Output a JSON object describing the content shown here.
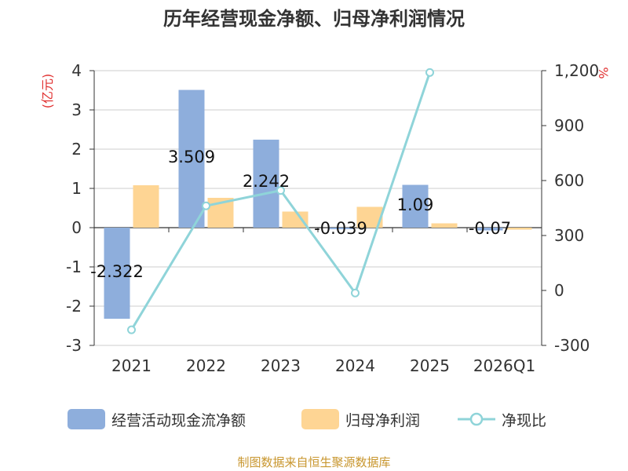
{
  "title": "历年经营现金净额、归母净利润情况",
  "left_unit": "(亿元)",
  "right_unit": "%",
  "source": "制图数据来自恒生聚源数据库",
  "colors": {
    "ocf": "#8eaedc",
    "profit": "#fed594",
    "ratio": "#8fd4d9",
    "unit": "#e03030",
    "source": "#c8962e"
  },
  "legend": [
    {
      "label": "经营活动现金流净额",
      "color": "#8eaedc",
      "kind": "bar"
    },
    {
      "label": "归母净利润",
      "color": "#fed594",
      "kind": "bar"
    },
    {
      "label": "净现比",
      "color": "#8fd4d9",
      "kind": "line"
    }
  ],
  "chart_data": {
    "type": "bar+line",
    "title": "历年经营现金净额、归母净利润情况",
    "categories": [
      "2021",
      "2022",
      "2023",
      "2024",
      "2025",
      "2026Q1"
    ],
    "series": [
      {
        "name": "经营活动现金流净额",
        "axis": "left",
        "type": "bar",
        "values": [
          -2.322,
          3.509,
          2.242,
          -0.039,
          1.09,
          -0.07
        ],
        "labels": [
          "-2.322",
          "3.509",
          "2.242",
          "-0.039",
          "1.09",
          "-0.07"
        ]
      },
      {
        "name": "归母净利润",
        "axis": "left",
        "type": "bar",
        "values": [
          1.08,
          0.76,
          0.41,
          0.53,
          0.11,
          -0.05
        ]
      },
      {
        "name": "净现比",
        "axis": "right",
        "type": "line",
        "values": [
          -215,
          462,
          546,
          -14,
          1190,
          null
        ]
      }
    ],
    "left_axis": {
      "label": "(亿元)",
      "min": -3,
      "max": 4,
      "ticks": [
        "-3",
        "-2",
        "-1",
        "0",
        "1",
        "2",
        "3",
        "4"
      ]
    },
    "right_axis": {
      "label": "%",
      "min": -300,
      "max": 1200,
      "ticks": [
        "-300",
        "0",
        "300",
        "600",
        "900",
        "1,200"
      ]
    },
    "grid": true,
    "legend_position": "bottom"
  }
}
